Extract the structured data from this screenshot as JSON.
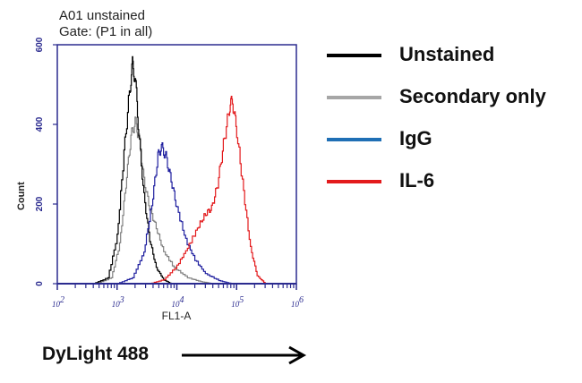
{
  "header": {
    "title_line1": "A01 unstained",
    "title_line2": "Gate: (P1 in all)"
  },
  "axes": {
    "y_label": "Count",
    "x_label": "FL1-A",
    "y_ticks": [
      "0",
      "200",
      "400",
      "600"
    ],
    "x_ticks": [
      "10^2",
      "10^3",
      "10^4",
      "10^5",
      "10^6"
    ],
    "axis_color": "#2b2b8f"
  },
  "legend": {
    "items": [
      {
        "label": "Unstained",
        "color": "#000000"
      },
      {
        "label": "Secondary only",
        "color": "#a6a6a6"
      },
      {
        "label": "IgG",
        "color": "#1f6fb5"
      },
      {
        "label": "IL-6",
        "color": "#e31a1c"
      }
    ]
  },
  "footer": {
    "channel_label": "DyLight 488"
  },
  "chart_data": {
    "type": "line",
    "title": "A01 unstained — Gate: (P1 in all)",
    "xlabel": "FL1-A",
    "ylabel": "Count",
    "x_scale": "log10",
    "xlim": [
      100,
      1000000
    ],
    "ylim": [
      0,
      600
    ],
    "x_ticks": [
      100,
      1000,
      10000,
      100000,
      1000000
    ],
    "y_ticks": [
      0,
      200,
      400,
      600
    ],
    "grid": false,
    "legend_position": "right",
    "series": [
      {
        "name": "Unstained",
        "color": "#000000",
        "peak_x": 1800,
        "peak_count": 548,
        "points": [
          [
            400,
            0
          ],
          [
            700,
            15
          ],
          [
            1000,
            120
          ],
          [
            1300,
            330
          ],
          [
            1600,
            480
          ],
          [
            1800,
            548
          ],
          [
            2000,
            520
          ],
          [
            2300,
            380
          ],
          [
            2800,
            220
          ],
          [
            3500,
            110
          ],
          [
            4500,
            40
          ],
          [
            6000,
            10
          ],
          [
            8000,
            0
          ]
        ]
      },
      {
        "name": "Secondary only",
        "color": "#808080",
        "peak_x": 2000,
        "peak_count": 407,
        "points": [
          [
            450,
            0
          ],
          [
            800,
            15
          ],
          [
            1100,
            100
          ],
          [
            1400,
            250
          ],
          [
            1700,
            370
          ],
          [
            2000,
            407
          ],
          [
            2300,
            370
          ],
          [
            2800,
            260
          ],
          [
            3500,
            190
          ],
          [
            4500,
            140
          ],
          [
            6000,
            80
          ],
          [
            9000,
            40
          ],
          [
            15000,
            15
          ],
          [
            25000,
            5
          ],
          [
            40000,
            0
          ]
        ]
      },
      {
        "name": "IgG",
        "color": "#1f1f9f",
        "peak_x": 5500,
        "peak_count": 344,
        "points": [
          [
            1000,
            0
          ],
          [
            1800,
            15
          ],
          [
            2800,
            80
          ],
          [
            3800,
            200
          ],
          [
            4800,
            320
          ],
          [
            5500,
            344
          ],
          [
            6500,
            320
          ],
          [
            8000,
            260
          ],
          [
            10000,
            190
          ],
          [
            14000,
            110
          ],
          [
            20000,
            60
          ],
          [
            30000,
            25
          ],
          [
            50000,
            8
          ],
          [
            80000,
            0
          ]
        ]
      },
      {
        "name": "IL-6",
        "color": "#e31a1c",
        "peak_x": 85000,
        "peak_count": 460,
        "points": [
          [
            3500,
            0
          ],
          [
            6000,
            10
          ],
          [
            10000,
            45
          ],
          [
            15000,
            90
          ],
          [
            22000,
            140
          ],
          [
            30000,
            175
          ],
          [
            38000,
            190
          ],
          [
            48000,
            250
          ],
          [
            60000,
            350
          ],
          [
            75000,
            440
          ],
          [
            85000,
            460
          ],
          [
            100000,
            380
          ],
          [
            130000,
            230
          ],
          [
            170000,
            90
          ],
          [
            220000,
            20
          ],
          [
            300000,
            0
          ]
        ]
      }
    ]
  }
}
